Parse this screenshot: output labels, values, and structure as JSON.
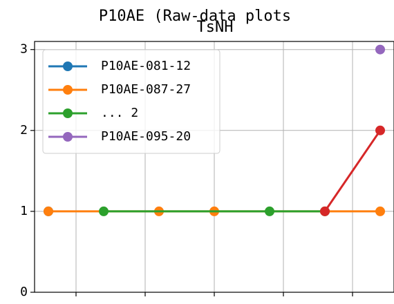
{
  "chart_data": {
    "type": "line",
    "suptitle": "P10AE (Raw-data plots",
    "title": "TsNH",
    "xlim": [
      -0.6,
      4.6
    ],
    "xticks": [
      0,
      1,
      2,
      3,
      4
    ],
    "ylim": [
      0,
      3.1
    ],
    "yticks": [
      0,
      1,
      2,
      3
    ],
    "grid": true,
    "legend": "upper left",
    "series": [
      {
        "name": "P10AE-081-12",
        "color": "#1f77b4",
        "x": [
          -0.4
        ],
        "values": [
          1
        ]
      },
      {
        "name": "P10AE-087-27",
        "color": "#ff7f0e",
        "x": [
          -0.4,
          1.2,
          2.0,
          4.4
        ],
        "values": [
          1,
          1,
          1,
          1
        ]
      },
      {
        "name": "... 2",
        "color": "#2ca02c",
        "x": [
          0.4,
          2.8,
          3.6
        ],
        "values": [
          1,
          1,
          1
        ]
      },
      {
        "color": "#d62728",
        "x": [
          3.6,
          4.4
        ],
        "values": [
          1,
          2
        ]
      },
      {
        "name": "P10AE-095-20",
        "color": "#9467bd",
        "x": [
          4.4
        ],
        "values": [
          3
        ]
      }
    ]
  }
}
